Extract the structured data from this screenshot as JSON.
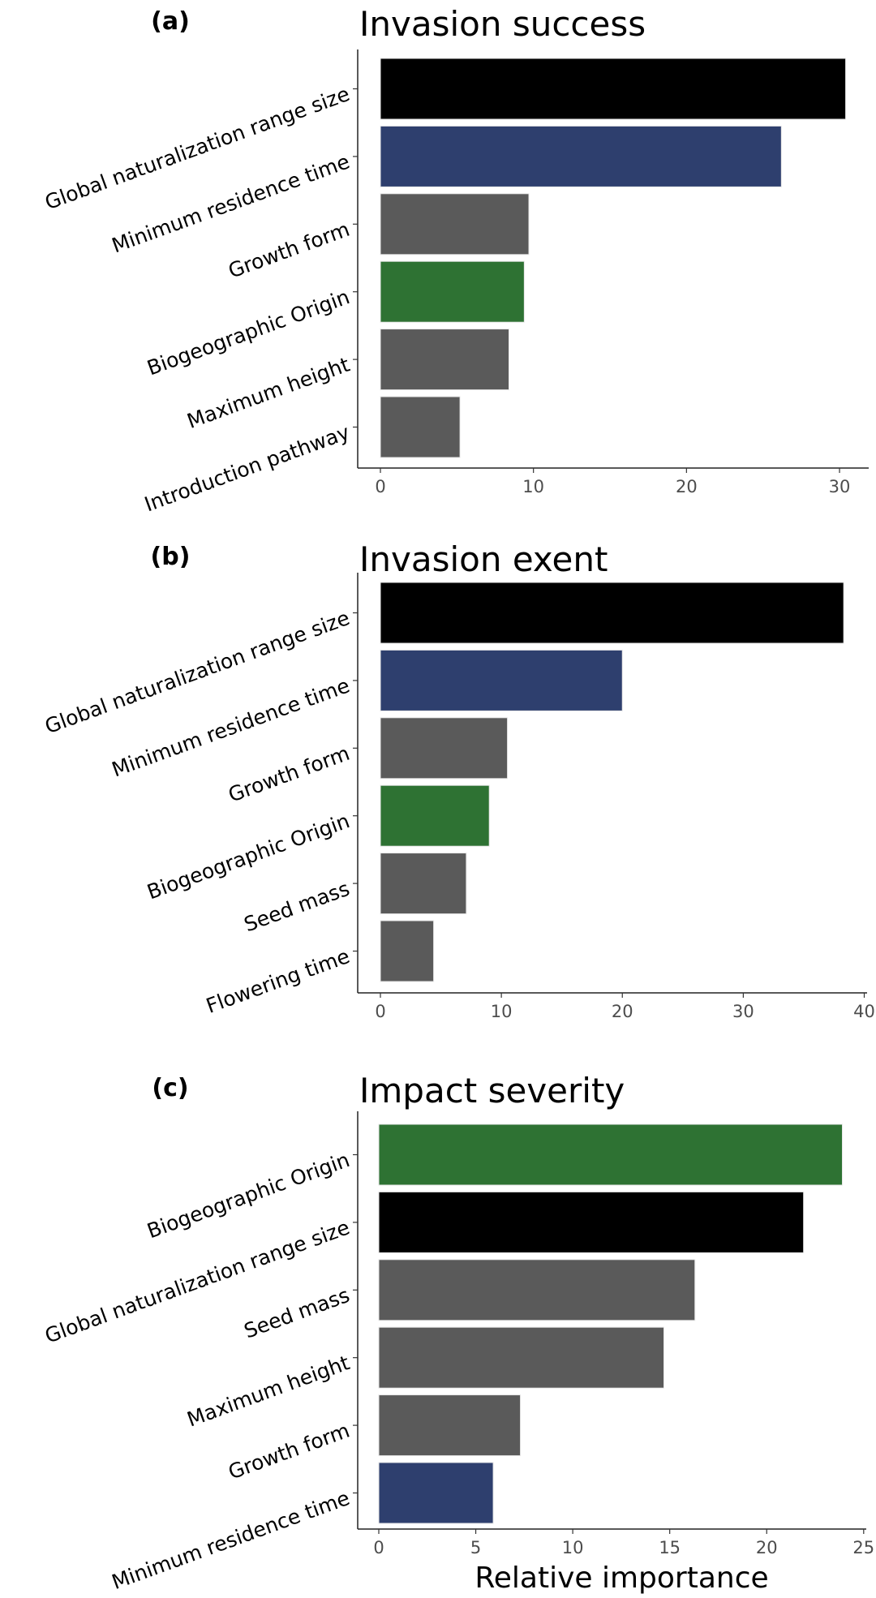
{
  "chart_data": [
    {
      "type": "bar",
      "orientation": "horizontal",
      "panel_label": "(a)",
      "title": "Invasion success",
      "xlabel": "",
      "categories": [
        "Global naturalization range size",
        "Minimum residence time",
        "Growth form",
        "Biogeographic Origin",
        "Maximum height",
        "Introduction pathway"
      ],
      "values": [
        30.4,
        26.2,
        9.7,
        9.4,
        8.4,
        5.2
      ],
      "colors": [
        "#000000",
        "#2e3f6e",
        "#5a5a5a",
        "#2e7233",
        "#5a5a5a",
        "#5a5a5a"
      ],
      "xticks": [
        "0",
        "10",
        "20",
        "30"
      ],
      "xlim": [
        0,
        31.8
      ]
    },
    {
      "type": "bar",
      "orientation": "horizontal",
      "panel_label": "(b)",
      "title": "Invasion exent",
      "xlabel": "",
      "categories": [
        "Global naturalization range size",
        "Minimum residence time",
        "Growth form",
        "Biogeographic Origin",
        "Seed mass",
        "Flowering time"
      ],
      "values": [
        38.3,
        20.0,
        10.5,
        9.0,
        7.1,
        4.4
      ],
      "colors": [
        "#000000",
        "#2e3f6e",
        "#5a5a5a",
        "#2e7233",
        "#5a5a5a",
        "#5a5a5a"
      ],
      "xticks": [
        "0",
        "10",
        "20",
        "30",
        "40"
      ],
      "xlim": [
        0,
        40.1
      ]
    },
    {
      "type": "bar",
      "orientation": "horizontal",
      "panel_label": "(c)",
      "title": "Impact severity",
      "xlabel": "Relative importance",
      "categories": [
        "Biogeographic Origin",
        "Global naturalization range size",
        "Seed mass",
        "Maximum height",
        "Growth form",
        "Minimum residence time"
      ],
      "values": [
        23.9,
        21.9,
        16.3,
        14.7,
        7.3,
        5.9
      ],
      "colors": [
        "#2e7233",
        "#000000",
        "#5a5a5a",
        "#5a5a5a",
        "#5a5a5a",
        "#2e3f6e"
      ],
      "xticks": [
        "0",
        "5",
        "10",
        "15",
        "20",
        "25"
      ],
      "xlim": [
        0,
        25.05
      ]
    }
  ]
}
